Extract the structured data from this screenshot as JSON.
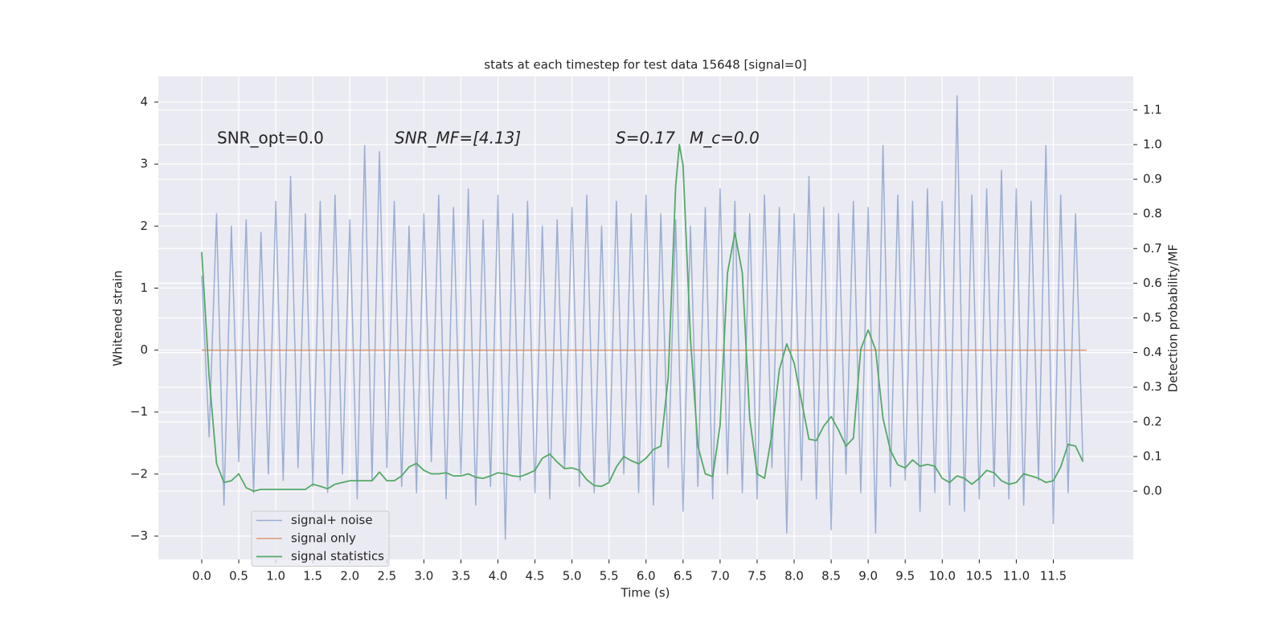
{
  "chart_data": {
    "type": "line",
    "title": "stats at each timestep for test data 15648 [signal=0]",
    "x_label": "Time (s)",
    "y_label": "Whitened strain",
    "y2_label": "Detection probability/MF",
    "annotations": [
      "SNR_opt=0.0",
      "SNR_MF=[4.13]",
      "S=0.17",
      "M_c=0.0"
    ],
    "grid": true,
    "legend": "lower left",
    "xlim": [
      -0.586,
      12.58
    ],
    "ylim": [
      -3.376,
      4.415
    ],
    "y2lim": [
      -0.197,
      1.197
    ],
    "xticks": [
      {
        "value": 0,
        "label": "0.0"
      },
      0.5,
      {
        "value": 1,
        "label": "1.0"
      },
      1.5,
      {
        "value": 2,
        "label": "2.0"
      },
      2.5,
      {
        "value": 3,
        "label": "3.0"
      },
      3.5,
      {
        "value": 4,
        "label": "4.0"
      },
      4.5,
      {
        "value": 5,
        "label": "5.0"
      },
      5.5,
      {
        "value": 6,
        "label": "6.0"
      },
      6.5,
      {
        "value": 7,
        "label": "7.0"
      },
      7.5,
      {
        "value": 8,
        "label": "8.0"
      },
      8.5,
      {
        "value": 9,
        "label": "9.0"
      },
      9.5,
      {
        "value": 10,
        "label": "10.0"
      },
      10.5,
      {
        "value": 11,
        "label": "11.0"
      },
      11.5
    ],
    "yticks": [
      {
        "value": -3,
        "label": "−3"
      },
      {
        "value": -2,
        "label": "−2"
      },
      {
        "value": -1,
        "label": "−1"
      },
      0,
      1,
      2,
      3,
      4
    ],
    "y2ticks": [
      {
        "value": 0,
        "label": "0.0"
      },
      0.1,
      0.2,
      0.3,
      0.4,
      0.5,
      0.6,
      0.7,
      0.8,
      0.9,
      {
        "value": 1,
        "label": "1.0"
      },
      1.1
    ],
    "series": [
      {
        "name": "signal+ noise",
        "color": "#4c72b0",
        "x": [
          0,
          0.1,
          0.2,
          0.3,
          0.4,
          0.5,
          0.6,
          0.7,
          0.8,
          0.9,
          1,
          1.1,
          1.2,
          1.3,
          1.4,
          1.5,
          1.6,
          1.7,
          1.8,
          1.9,
          2,
          2.1,
          2.2,
          2.3,
          2.4,
          2.5,
          2.6,
          2.7,
          2.8,
          2.9,
          3,
          3.1,
          3.2,
          3.3,
          3.4,
          3.5,
          3.6,
          3.7,
          3.8,
          3.9,
          4,
          4.1,
          4.2,
          4.3,
          4.4,
          4.5,
          4.6,
          4.7,
          4.8,
          4.9,
          5,
          5.1,
          5.2,
          5.3,
          5.4,
          5.5,
          5.6,
          5.7,
          5.8,
          5.9,
          6,
          6.1,
          6.2,
          6.3,
          6.4,
          6.5,
          6.6,
          6.7,
          6.8,
          6.9,
          7,
          7.1,
          7.2,
          7.3,
          7.4,
          7.5,
          7.6,
          7.7,
          7.8,
          7.9,
          8,
          8.1,
          8.2,
          8.3,
          8.4,
          8.5,
          8.6,
          8.7,
          8.8,
          8.9,
          9,
          9.1,
          9.2,
          9.3,
          9.4,
          9.5,
          9.6,
          9.7,
          9.8,
          9.9,
          10,
          10.1,
          10.2,
          10.3,
          10.4,
          10.5,
          10.6,
          10.7,
          10.8,
          10.9,
          11,
          11.1,
          11.2,
          11.3,
          11.4,
          11.5,
          11.6,
          11.7,
          11.8,
          11.9
        ],
        "values": [
          1.2,
          -1.4,
          2.2,
          -2.5,
          2.0,
          -1.8,
          2.1,
          -2.3,
          1.9,
          -2.0,
          2.4,
          -2.1,
          2.8,
          -1.9,
          2.2,
          -2.2,
          2.4,
          -2.3,
          2.5,
          -2.0,
          2.1,
          -2.4,
          3.3,
          -2.1,
          3.2,
          -1.9,
          2.4,
          -2.2,
          2.0,
          -2.3,
          2.2,
          -1.8,
          2.5,
          -2.4,
          2.3,
          -2.0,
          2.6,
          -2.5,
          2.1,
          -2.2,
          2.5,
          -3.05,
          2.2,
          -2.1,
          2.4,
          -2.3,
          2.0,
          -2.4,
          2.1,
          -1.9,
          2.3,
          -2.2,
          2.5,
          -2.3,
          2.0,
          -2.1,
          2.4,
          -2.0,
          2.2,
          -2.3,
          2.5,
          -2.5,
          2.2,
          -1.9,
          2.1,
          -2.6,
          2.0,
          -2.2,
          2.3,
          -2.4,
          2.6,
          -2.0,
          2.4,
          -2.3,
          2.2,
          -2.4,
          2.5,
          -1.9,
          2.3,
          -2.95,
          2.2,
          -2.1,
          2.8,
          -2.4,
          2.3,
          -2.9,
          2.2,
          -2.0,
          2.4,
          -2.3,
          2.3,
          -2.95,
          3.3,
          -2.2,
          2.5,
          -2.1,
          2.4,
          -2.6,
          2.6,
          -2.3,
          2.4,
          -2.5,
          4.1,
          -2.6,
          2.5,
          -2.4,
          2.6,
          -2.2,
          2.9,
          -2.4,
          2.6,
          -2.5,
          2.4,
          -2.1,
          3.3,
          -2.8,
          2.5,
          -2.3,
          2.2,
          -1.8
        ]
      },
      {
        "name": "signal only",
        "color": "#dd8452",
        "x": [
          0,
          11.95
        ],
        "values": [
          0,
          0
        ]
      },
      {
        "name": "signal statistics",
        "color": "#55a868",
        "axis": "y2",
        "x": [
          0,
          0.1,
          0.2,
          0.3,
          0.4,
          0.5,
          0.6,
          0.7,
          0.8,
          0.9,
          1,
          1.1,
          1.2,
          1.3,
          1.4,
          1.5,
          1.6,
          1.7,
          1.8,
          1.9,
          2,
          2.1,
          2.2,
          2.3,
          2.4,
          2.5,
          2.6,
          2.7,
          2.8,
          2.9,
          3,
          3.1,
          3.2,
          3.3,
          3.4,
          3.5,
          3.6,
          3.7,
          3.8,
          3.9,
          4,
          4.1,
          4.2,
          4.3,
          4.4,
          4.5,
          4.6,
          4.7,
          4.8,
          4.9,
          5,
          5.1,
          5.2,
          5.3,
          5.4,
          5.5,
          5.6,
          5.7,
          5.8,
          5.9,
          6,
          6.1,
          6.2,
          6.3,
          6.4,
          6.45,
          6.5,
          6.6,
          6.7,
          6.8,
          6.9,
          7,
          7.1,
          7.2,
          7.3,
          7.4,
          7.5,
          7.6,
          7.7,
          7.8,
          7.9,
          8,
          8.1,
          8.2,
          8.3,
          8.4,
          8.5,
          8.6,
          8.7,
          8.8,
          8.9,
          9,
          9.1,
          9.2,
          9.3,
          9.4,
          9.5,
          9.6,
          9.7,
          9.8,
          9.9,
          10,
          10.1,
          10.2,
          10.3,
          10.4,
          10.5,
          10.6,
          10.7,
          10.8,
          10.9,
          11,
          11.1,
          11.2,
          11.3,
          11.4,
          11.5,
          11.6,
          11.7,
          11.8,
          11.9
        ],
        "values": [
          0.69,
          0.33,
          0.08,
          0.025,
          0.03,
          0.05,
          0.01,
          0.0,
          0.005,
          0.005,
          0.005,
          0.005,
          0.005,
          0.005,
          0.005,
          0.02,
          0.014,
          0.007,
          0.02,
          0.025,
          0.03,
          0.03,
          0.03,
          0.03,
          0.055,
          0.03,
          0.03,
          0.044,
          0.07,
          0.08,
          0.06,
          0.05,
          0.05,
          0.053,
          0.044,
          0.044,
          0.05,
          0.04,
          0.037,
          0.044,
          0.053,
          0.05,
          0.044,
          0.042,
          0.05,
          0.06,
          0.095,
          0.107,
          0.084,
          0.065,
          0.067,
          0.06,
          0.033,
          0.016,
          0.014,
          0.025,
          0.07,
          0.1,
          0.088,
          0.079,
          0.095,
          0.12,
          0.13,
          0.33,
          0.88,
          1.0,
          0.94,
          0.44,
          0.13,
          0.05,
          0.042,
          0.19,
          0.63,
          0.745,
          0.63,
          0.21,
          0.05,
          0.037,
          0.165,
          0.35,
          0.425,
          0.37,
          0.26,
          0.15,
          0.146,
          0.188,
          0.215,
          0.176,
          0.13,
          0.153,
          0.41,
          0.465,
          0.408,
          0.21,
          0.118,
          0.076,
          0.067,
          0.09,
          0.072,
          0.077,
          0.072,
          0.037,
          0.025,
          0.044,
          0.037,
          0.02,
          0.037,
          0.06,
          0.053,
          0.03,
          0.02,
          0.025,
          0.05,
          0.044,
          0.037,
          0.025,
          0.03,
          0.07,
          0.135,
          0.13,
          0.085
        ]
      }
    ]
  }
}
